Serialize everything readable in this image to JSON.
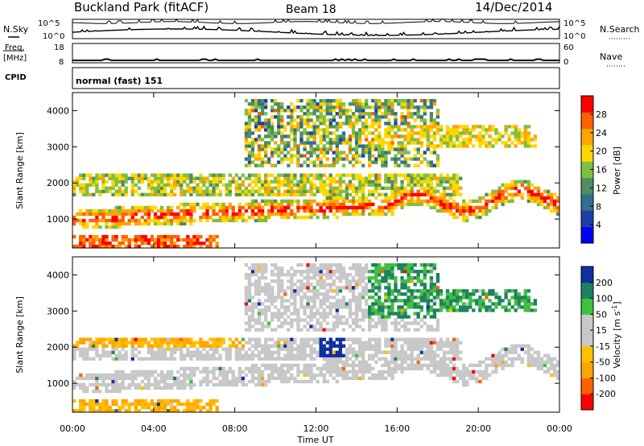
{
  "header": {
    "station": "Buckland Park (fitACF)",
    "beam": "Beam 18",
    "date": "14/Dec/2014"
  },
  "noise_panel": {
    "left_label": "N.Sky",
    "right_label": "N.Search",
    "ticks_left": [
      "10^5",
      "10^0"
    ],
    "ticks_right": [
      "10^5",
      "10^0"
    ]
  },
  "freq_panel": {
    "left_label_1": "Freq.",
    "left_label_2": "[MHz]",
    "right_label": "Nave",
    "ticks_left": [
      "18",
      "8"
    ],
    "ticks_right": [
      "60",
      "0"
    ]
  },
  "cpid_panel": {
    "label": "CPID",
    "text": "normal (fast) 151"
  },
  "chart_data": [
    {
      "type": "heatmap",
      "ylabel": "Slant Range [km]",
      "ylim": [
        200,
        4500
      ],
      "yticks": [
        "4000",
        "3000",
        "2000",
        "1000"
      ],
      "colorbar_label": "Power [dB]",
      "colorbar_ticks": [
        "28",
        "24",
        "20",
        "16",
        "12",
        "8",
        "4"
      ],
      "colorscale": [
        "#0000ff",
        "#1f3fa8",
        "#2f6f90",
        "#4f8f5f",
        "#7fbf3f",
        "#ffd700",
        "#ffa500",
        "#ff6000",
        "#ff0000"
      ]
    },
    {
      "type": "heatmap",
      "ylabel": "Slant Range [km]",
      "ylim": [
        200,
        4500
      ],
      "yticks": [
        "4000",
        "3000",
        "2000",
        "1000"
      ],
      "colorbar_label_main": "Velocity [m s",
      "colorbar_label_sup": "-1",
      "colorbar_label_end": "]",
      "colorbar_ticks": [
        "200",
        "100",
        "50",
        "15",
        "-15",
        "-50",
        "-100",
        "-200"
      ],
      "colorscale": [
        "#ff0000",
        "#ff6000",
        "#ffa500",
        "#ffc000",
        "#c8c8c8",
        "#c8c8c8",
        "#40c040",
        "#208060",
        "#1030a0"
      ]
    }
  ],
  "x_axis": {
    "label": "Time UT",
    "ticks": [
      "00:00",
      "04:00",
      "08:00",
      "12:00",
      "16:00",
      "20:00",
      "00:00"
    ]
  }
}
